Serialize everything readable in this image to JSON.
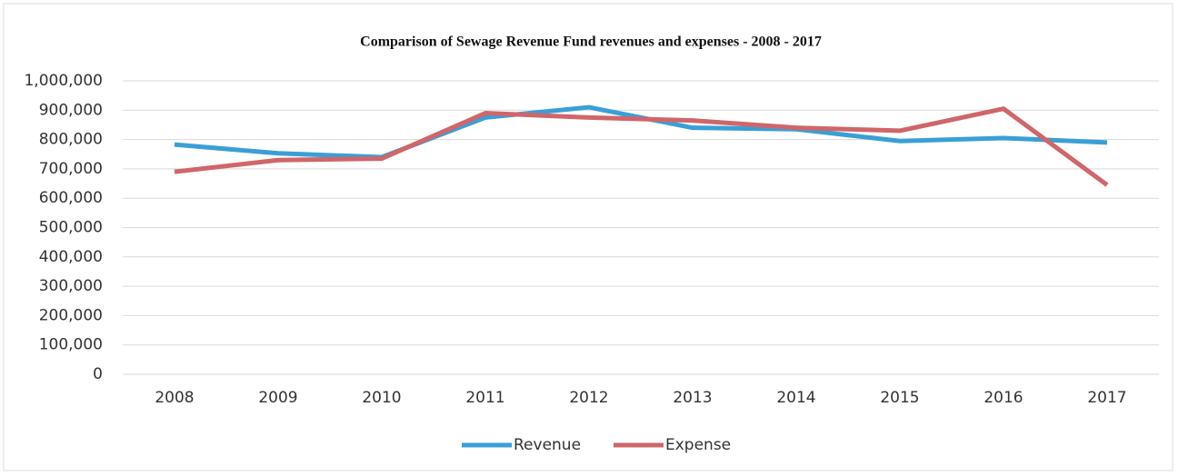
{
  "chart_data": {
    "type": "line",
    "title": "Comparison of Sewage Revenue Fund revenues and expenses - 2008 - 2017",
    "categories": [
      "2008",
      "2009",
      "2010",
      "2011",
      "2012",
      "2013",
      "2014",
      "2015",
      "2016",
      "2017"
    ],
    "series": [
      {
        "name": "Revenue",
        "color": "#3a9fd6",
        "values": [
          783000,
          753000,
          740000,
          875000,
          910000,
          840000,
          835000,
          795000,
          805000,
          790000
        ]
      },
      {
        "name": "Expense",
        "color": "#d0666a",
        "values": [
          690000,
          730000,
          735000,
          890000,
          875000,
          865000,
          840000,
          830000,
          905000,
          645000
        ]
      }
    ],
    "ylim": [
      0,
      1000000
    ],
    "yticks": [
      0,
      {
        "value": 100000,
        "label": "100,000"
      },
      {
        "value": 200000,
        "label": "200,000"
      },
      {
        "value": 300000,
        "label": "300,000"
      },
      {
        "value": 400000,
        "label": "400,000"
      },
      {
        "value": 500000,
        "label": "500,000"
      },
      {
        "value": 600000,
        "label": "600,000"
      },
      {
        "value": 700000,
        "label": "700,000"
      },
      {
        "value": 800000,
        "label": "800,000"
      },
      {
        "value": 900000,
        "label": "900,000"
      },
      {
        "value": 1000000,
        "label": "1,000,000"
      }
    ],
    "grid": true,
    "legend": "bottom"
  }
}
